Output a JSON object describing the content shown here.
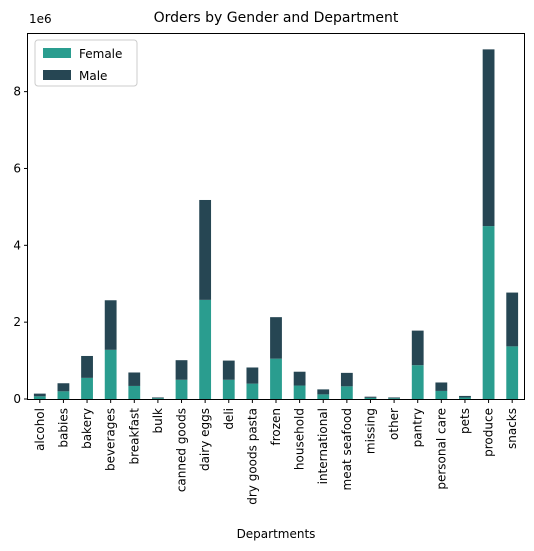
{
  "chart_data": {
    "type": "bar",
    "stacked": true,
    "title": "Orders by Gender and Department",
    "xlabel": "Departments",
    "ylabel": "",
    "y_offset_label": "1e6",
    "y_scale": 1000000,
    "ylim": [
      0,
      9.5
    ],
    "yticks": [
      0,
      2,
      4,
      6,
      8
    ],
    "grid": false,
    "legend_position": "top-left",
    "categories": [
      "alcohol",
      "babies",
      "bakery",
      "beverages",
      "breakfast",
      "bulk",
      "canned goods",
      "dairy eggs",
      "deli",
      "dry goods pasta",
      "frozen",
      "household",
      "international",
      "meat seafood",
      "missing",
      "other",
      "pantry",
      "personal care",
      "pets",
      "produce",
      "snacks"
    ],
    "series": [
      {
        "name": "Female",
        "color": "#2a9d8f",
        "values": [
          0.07,
          0.2,
          0.55,
          1.28,
          0.34,
          0.02,
          0.5,
          2.58,
          0.5,
          0.4,
          1.05,
          0.35,
          0.12,
          0.33,
          0.03,
          0.02,
          0.88,
          0.21,
          0.04,
          4.5,
          1.37
        ]
      },
      {
        "name": "Male",
        "color": "#264653",
        "values": [
          0.07,
          0.21,
          0.57,
          1.29,
          0.35,
          0.02,
          0.51,
          2.6,
          0.5,
          0.42,
          1.08,
          0.36,
          0.13,
          0.35,
          0.03,
          0.02,
          0.9,
          0.22,
          0.04,
          4.6,
          1.4
        ]
      }
    ]
  }
}
